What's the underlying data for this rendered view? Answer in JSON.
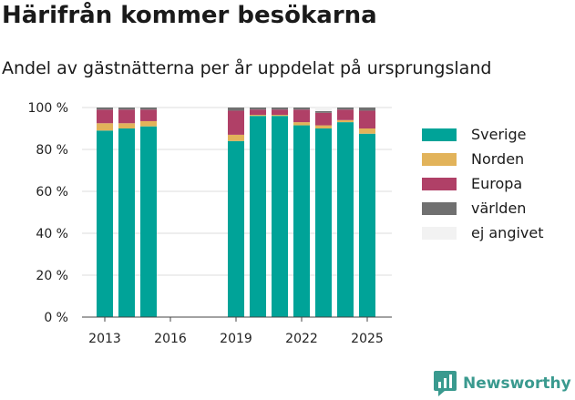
{
  "title": "Härifrån kommer besökarna",
  "subtitle": "Andel av gästnätterna per år uppdelat på ursprungsland",
  "brand": "Newsworthy",
  "chart_data": {
    "type": "bar",
    "stacked": true,
    "categories": [
      "2013",
      "2014",
      "2015",
      "2016",
      "2017",
      "2018",
      "2019",
      "2020",
      "2021",
      "2022",
      "2023",
      "2024",
      "2025"
    ],
    "x_tick_labels": [
      "2013",
      "2016",
      "2019",
      "2022",
      "2025"
    ],
    "ylim": [
      0,
      100
    ],
    "y_ticks": [
      0,
      20,
      40,
      60,
      80,
      100
    ],
    "y_tick_suffix": " %",
    "grid": true,
    "legend_position": "right",
    "series": [
      {
        "name": "Sverige",
        "color": "#00a398",
        "values": [
          89,
          90,
          91,
          null,
          null,
          null,
          84,
          96,
          96,
          91.5,
          90,
          93,
          87.5
        ]
      },
      {
        "name": "Norden",
        "color": "#e2b35a",
        "values": [
          3.5,
          2.5,
          2.5,
          null,
          null,
          null,
          3,
          0.5,
          0.5,
          1.5,
          1.5,
          1,
          2.5
        ]
      },
      {
        "name": "Europa",
        "color": "#b04067",
        "values": [
          6.5,
          6.5,
          5.5,
          null,
          null,
          null,
          11.5,
          2.5,
          2.5,
          6,
          6,
          5,
          8.5
        ]
      },
      {
        "name": "världen",
        "color": "#707070",
        "values": [
          1,
          1,
          1,
          null,
          null,
          null,
          1.5,
          1,
          1,
          1,
          0.8,
          1,
          1.5
        ]
      },
      {
        "name": "ej angivet",
        "color": "#f2f2f2",
        "values": [
          0,
          0,
          0,
          null,
          null,
          null,
          0,
          0,
          0,
          0,
          1.7,
          0,
          0
        ]
      }
    ]
  }
}
